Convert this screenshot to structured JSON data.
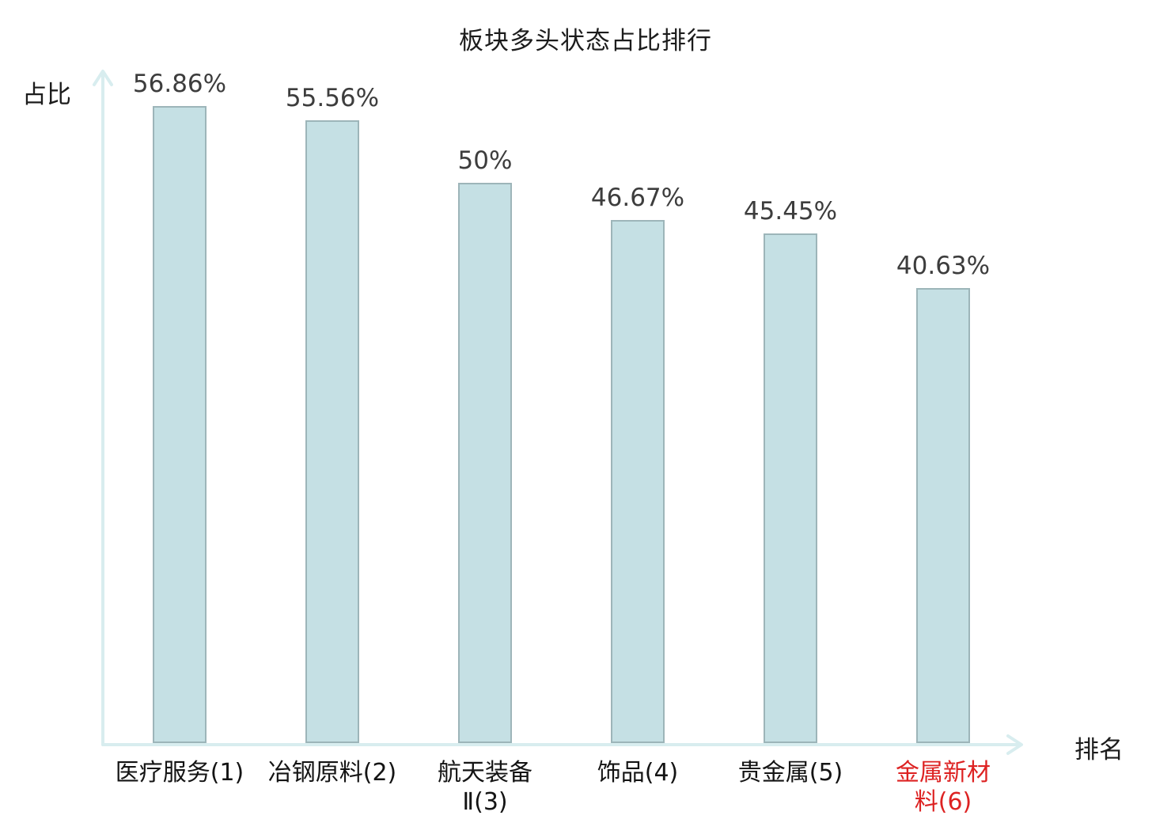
{
  "chart_data": {
    "type": "bar",
    "title": "板块多头状态占比排行",
    "xlabel": "排名",
    "ylabel": "占比",
    "categories": [
      "医疗服务(1)",
      "冶钢原料(2)",
      "航天装备Ⅱ(3)",
      "饰品(4)",
      "贵金属(5)",
      "金属新材料(6)"
    ],
    "category_lines": [
      [
        "医疗服务(1)"
      ],
      [
        "冶钢原料(2)"
      ],
      [
        "航天装备",
        "Ⅱ(3)"
      ],
      [
        "饰品(4)"
      ],
      [
        "贵金属(5)"
      ],
      [
        "金属新材",
        "料(6)"
      ]
    ],
    "values": [
      56.86,
      55.56,
      50,
      46.67,
      45.45,
      40.63
    ],
    "value_labels": [
      "56.86%",
      "55.56%",
      "50%",
      "46.67%",
      "45.45%",
      "40.63%"
    ],
    "highlighted_category_index": 5,
    "highlighted_category": "金属新材料(6)",
    "grid": false,
    "legend": "none",
    "y_axis_ticks": "none",
    "baseline_value": 0
  },
  "colors": {
    "bar_fill": "#c5e0e4",
    "bar_border": "#9db5b9",
    "axis": "#d8edef",
    "value_label": "#3d3d3d",
    "category_label": "#141414",
    "highlight": "#dd2222"
  }
}
